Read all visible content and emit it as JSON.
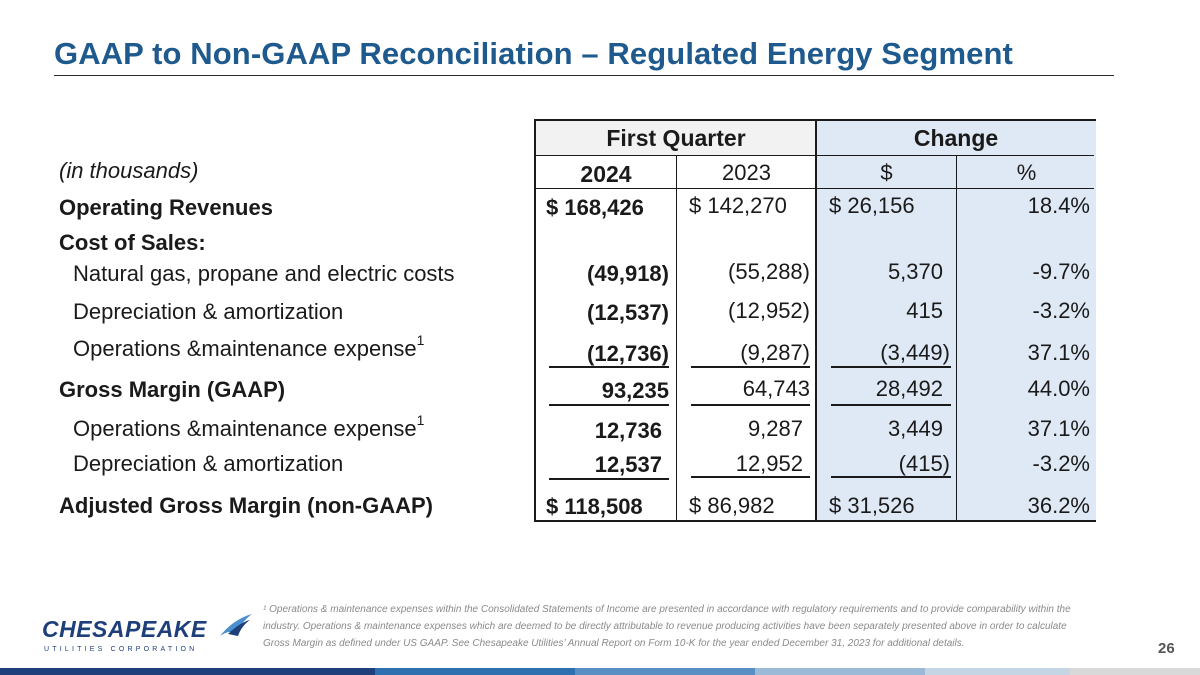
{
  "title": "GAAP to Non-GAAP Reconciliation – Regulated Energy Segment",
  "units_label": "(in thousands)",
  "header": {
    "group1": "First Quarter",
    "group2": "Change",
    "col_2024": "2024",
    "col_2023": "2023",
    "col_dollar": "$",
    "col_pct": "%"
  },
  "rows": {
    "op_rev": {
      "label": "Operating Revenues",
      "c2024": "$  168,426",
      "c2023": "$  142,270",
      "cdollar": "$    26,156",
      "cpct": "18.4%"
    },
    "cos": {
      "label": "Cost of Sales:"
    },
    "natgas": {
      "label": "Natural gas, propane and electric costs",
      "c2024": "(49,918)",
      "c2023": "(55,288)",
      "cdollar": "5,370",
      "cpct": "-9.7%"
    },
    "dep1": {
      "label": "Depreciation & amortization",
      "c2024": "(12,537)",
      "c2023": "(12,952)",
      "cdollar": "415",
      "cpct": "-3.2%"
    },
    "om1": {
      "label": "Operations &maintenance expense",
      "sup": "1",
      "c2024": "(12,736)",
      "c2023": "(9,287)",
      "cdollar": "(3,449)",
      "cpct": "37.1%"
    },
    "gm": {
      "label": "Gross Margin (GAAP)",
      "c2024": "93,235",
      "c2023": "64,743",
      "cdollar": "28,492",
      "cpct": "44.0%"
    },
    "om2": {
      "label": "Operations &maintenance expense",
      "sup": "1",
      "c2024": "12,736",
      "c2023": "9,287",
      "cdollar": "3,449",
      "cpct": "37.1%"
    },
    "dep2": {
      "label": "Depreciation & amortization",
      "c2024": "12,537",
      "c2023": "12,952",
      "cdollar": "(415)",
      "cpct": "-3.2%"
    },
    "agm": {
      "label": "Adjusted Gross Margin (non-GAAP)",
      "c2024": "$  118,508",
      "c2023": "$    86,982",
      "cdollar": "$    31,526",
      "cpct": "36.2%"
    }
  },
  "footnote": "¹ Operations & maintenance expenses within the Consolidated Statements of Income are presented in accordance with regulatory requirements and to provide comparability within the industry. Operations & maintenance expenses which are deemed to be directly attributable to revenue producing activities have been separately presented above in order to calculate Gross Margin as defined under US GAAP. See Chesapeake Utilities’ Annual Report on Form 10-K for the year ended December 31, 2023 for additional details.",
  "page_number": "26",
  "logo": {
    "name": "CHESAPEAKE",
    "sub": "UTILITIES CORPORATION"
  },
  "colors": {
    "title": "#1e5a8e",
    "change_shade": "#dfe9f5",
    "logo": "#1e3f7a"
  }
}
